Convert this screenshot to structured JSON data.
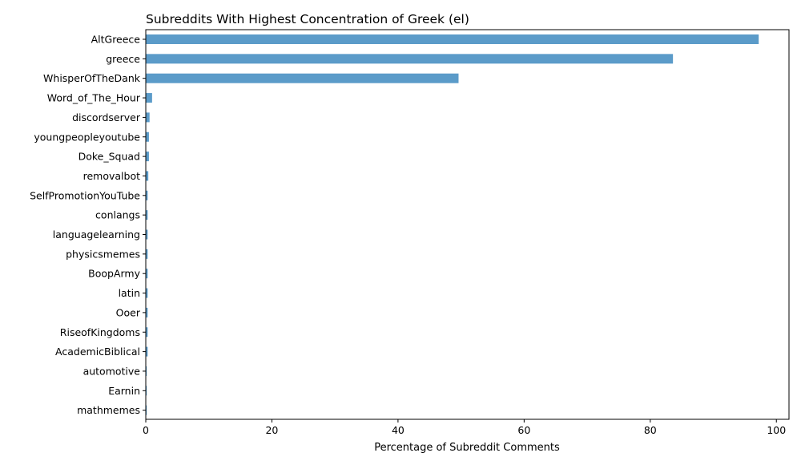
{
  "chart_data": {
    "type": "bar",
    "orientation": "horizontal",
    "title": "Subreddits With Highest Concentration of Greek (el)",
    "xlabel": "Percentage of Subreddit Comments",
    "ylabel": "",
    "xlim": [
      0,
      102
    ],
    "xticks": [
      0,
      20,
      40,
      60,
      80,
      100
    ],
    "grid": false,
    "bar_color": "#5b9bc9",
    "categories": [
      "AltGreece",
      "greece",
      "WhisperOfTheDank",
      "Word_of_The_Hour",
      "discordserver",
      "youngpeopleyoutube",
      "Doke_Squad",
      "removalbot",
      "SelfPromotionYouTube",
      "conlangs",
      "languagelearning",
      "physicsmemes",
      "BoopArmy",
      "latin",
      "Ooer",
      "RiseofKingdoms",
      "AcademicBiblical",
      "automotive",
      "Earnin",
      "mathmemes"
    ],
    "values": [
      97.2,
      83.6,
      49.6,
      1.0,
      0.6,
      0.5,
      0.5,
      0.4,
      0.3,
      0.3,
      0.3,
      0.3,
      0.3,
      0.3,
      0.3,
      0.3,
      0.3,
      0.1,
      0.1,
      0.1
    ]
  }
}
